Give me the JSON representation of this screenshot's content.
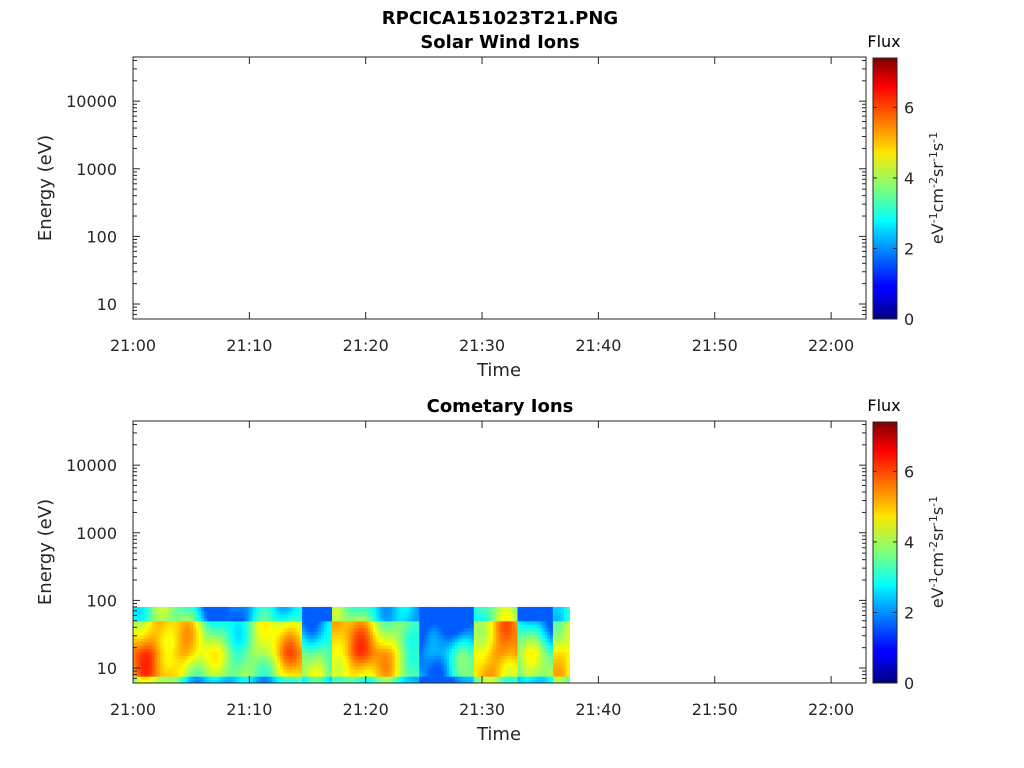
{
  "figure": {
    "title": "RPCICA151023T21.PNG"
  },
  "chart_data": [
    {
      "type": "heatmap",
      "title": "Solar Wind Ions",
      "xlabel": "Time",
      "ylabel": "Energy (eV)",
      "x_ticks": [
        "21:00",
        "21:10",
        "21:20",
        "21:30",
        "21:40",
        "21:50",
        "22:00"
      ],
      "xlim": [
        "21:00",
        "22:03"
      ],
      "y_scale": "log",
      "y_ticks": [
        "10",
        "100",
        "1000",
        "10000"
      ],
      "ylim": [
        6,
        45000
      ],
      "colorbar": {
        "label": "Flux",
        "units_label": "eV-1cm-2sr-1s-1",
        "units_base": [
          "eV",
          "cm",
          "sr",
          "s"
        ],
        "units_exp": [
          "-1",
          "-2",
          "-1",
          "-1"
        ],
        "ticks": [
          "0",
          "2",
          "4",
          "6"
        ],
        "range": [
          0,
          7.4
        ],
        "colormap": "jet"
      },
      "data_present": false,
      "data_extent": null
    },
    {
      "type": "heatmap",
      "title": "Cometary Ions",
      "xlabel": "Time",
      "ylabel": "Energy (eV)",
      "x_ticks": [
        "21:00",
        "21:10",
        "21:20",
        "21:30",
        "21:40",
        "21:50",
        "22:00"
      ],
      "xlim": [
        "21:00",
        "22:03"
      ],
      "y_scale": "log",
      "y_ticks": [
        "10",
        "100",
        "1000",
        "10000"
      ],
      "ylim": [
        6,
        45000
      ],
      "colorbar": {
        "label": "Flux",
        "units_label": "eV-1cm-2sr-1s-1",
        "units_base": [
          "eV",
          "cm",
          "sr",
          "s"
        ],
        "units_exp": [
          "-1",
          "-2",
          "-1",
          "-1"
        ],
        "ticks": [
          "0",
          "2",
          "4",
          "6"
        ],
        "range": [
          0,
          7.4
        ],
        "colormap": "jet"
      },
      "data_present": true,
      "data_extent": {
        "t_start": "21:00",
        "t_end": "21:37:30",
        "energy_min": 6,
        "energy_max": 80
      }
    }
  ]
}
